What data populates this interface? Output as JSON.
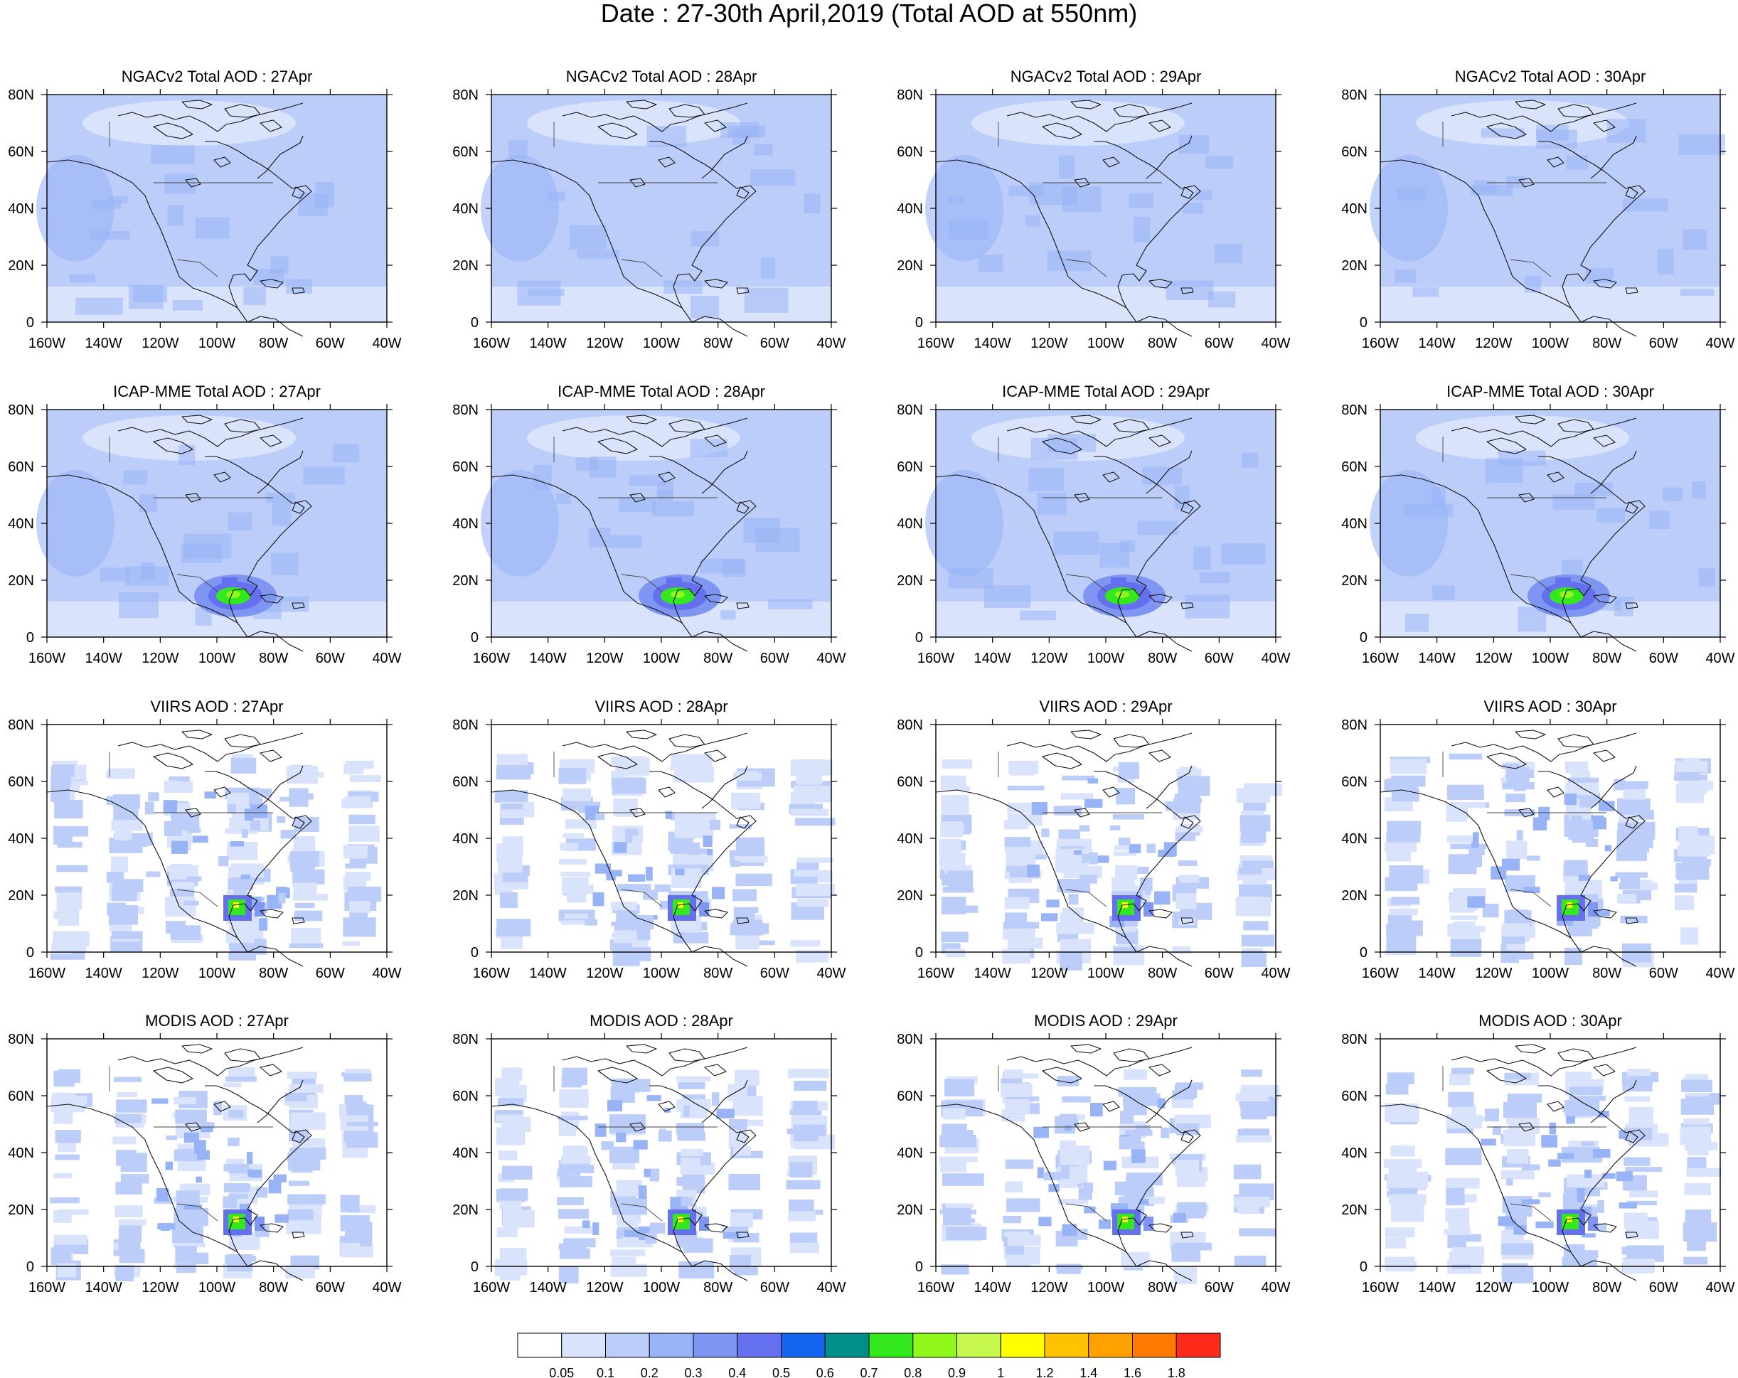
{
  "title": "Date : 27-30th April,2019 (Total AOD at 550nm)",
  "rows": [
    {
      "product": "NGACv2",
      "titles": [
        "NGACv2 Total AOD : 27Apr",
        "NGACv2 Total AOD : 28Apr",
        "NGACv2 Total AOD : 29Apr",
        "NGACv2 Total AOD : 30Apr"
      ],
      "kind": "model",
      "hotspot": 0
    },
    {
      "product": "ICAP-MME",
      "titles": [
        "ICAP-MME Total AOD : 27Apr",
        "ICAP-MME Total AOD : 28Apr",
        "ICAP-MME Total AOD : 29Apr",
        "ICAP-MME Total AOD : 30Apr"
      ],
      "kind": "model",
      "hotspot": 1
    },
    {
      "product": "VIIRS",
      "titles": [
        "VIIRS AOD : 27Apr",
        "VIIRS AOD : 28Apr",
        "VIIRS AOD : 29Apr",
        "VIIRS AOD : 30Apr"
      ],
      "kind": "satellite",
      "hotspot": 1
    },
    {
      "product": "MODIS",
      "titles": [
        "MODIS AOD : 27Apr",
        "MODIS AOD : 28Apr",
        "MODIS AOD : 29Apr",
        "MODIS AOD : 30Apr"
      ],
      "kind": "satellite",
      "hotspot": 1
    }
  ],
  "axes": {
    "lat_ticks": [
      "80N",
      "60N",
      "40N",
      "20N",
      "0"
    ],
    "lon_ticks": [
      "160W",
      "140W",
      "120W",
      "100W",
      "80W",
      "60W",
      "40W"
    ]
  },
  "colorbar": {
    "labels": [
      "0.05",
      "0.1",
      "0.2",
      "0.3",
      "0.4",
      "0.5",
      "0.6",
      "0.7",
      "0.8",
      "0.9",
      "1",
      "1.2",
      "1.4",
      "1.6",
      "1.8"
    ],
    "colors": [
      "#ffffff",
      "#d9e3fb",
      "#bccdf9",
      "#99b4f6",
      "#7e95f2",
      "#6570ef",
      "#1565f0",
      "#008f8a",
      "#33e81d",
      "#8ff71a",
      "#c6f74d",
      "#ffff00",
      "#ffc200",
      "#ffa200",
      "#ff7a00",
      "#ff2a1a"
    ]
  }
}
